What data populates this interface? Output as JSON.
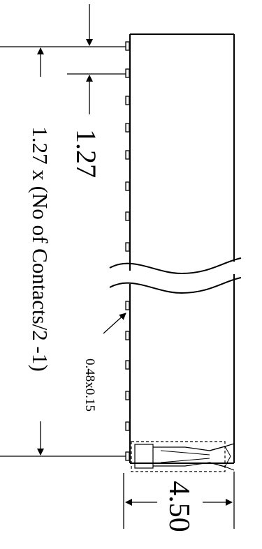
{
  "drawing": {
    "pitch_label": "1.27",
    "span_label": "1.27 x (No of Contacts/2 -1)",
    "pad_label": "0.48x0.15",
    "width_label": "4.50"
  },
  "colors": {
    "ink": "#000000",
    "background": "#ffffff"
  }
}
